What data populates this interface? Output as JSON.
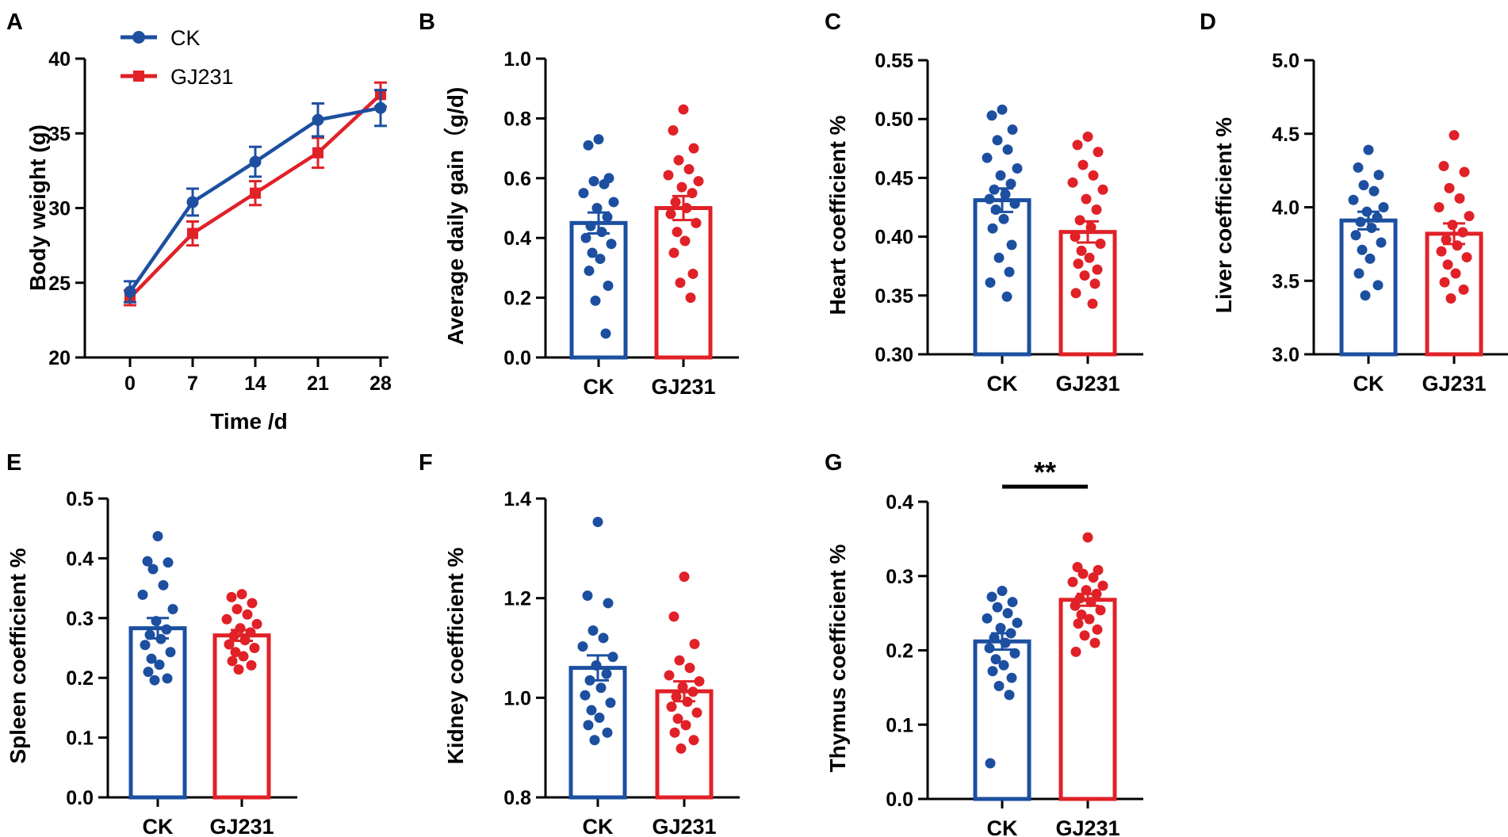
{
  "colors": {
    "ck": "#1c4fa0",
    "gj231": "#e02127",
    "axis": "#000000"
  },
  "chart_data": [
    {
      "id": "A",
      "type": "line",
      "letter": "A",
      "title": "",
      "xlabel": "Time /d",
      "ylabel": "Body weight (g)",
      "ylim": [
        20,
        40
      ],
      "yticks": [
        20,
        25,
        30,
        35,
        40
      ],
      "x": [
        0,
        7,
        14,
        21,
        28
      ],
      "xticklabels": [
        "0",
        "7",
        "14",
        "21",
        "28"
      ],
      "legend": {
        "position": "top-left",
        "entries": [
          "CK",
          "GJ231"
        ]
      },
      "series": [
        {
          "name": "CK",
          "marker": "circle",
          "values": [
            24.4,
            30.4,
            33.1,
            35.9,
            36.7
          ],
          "sem": [
            0.7,
            0.9,
            1.0,
            1.1,
            1.2
          ]
        },
        {
          "name": "GJ231",
          "marker": "square",
          "values": [
            24.0,
            28.3,
            31.0,
            33.7,
            37.6
          ],
          "sem": [
            0.5,
            0.8,
            0.8,
            1.0,
            0.8
          ]
        }
      ]
    },
    {
      "id": "B",
      "type": "bar",
      "letter": "B",
      "ylabel": "Average daily gain（g/d)",
      "ylim": [
        0,
        1.0
      ],
      "yticks": [
        "0.0",
        "0.2",
        "0.4",
        "0.6",
        "0.8",
        "1.0"
      ],
      "categories": [
        "CK",
        "GJ231"
      ],
      "values": [
        0.45,
        0.5
      ],
      "sem": [
        0.035,
        0.04
      ],
      "points": [
        [
          0.73,
          0.71,
          0.6,
          0.59,
          0.58,
          0.55,
          0.52,
          0.5,
          0.47,
          0.44,
          0.42,
          0.4,
          0.38,
          0.35,
          0.33,
          0.29,
          0.24,
          0.19,
          0.08
        ],
        [
          0.83,
          0.76,
          0.7,
          0.66,
          0.63,
          0.61,
          0.59,
          0.57,
          0.55,
          0.52,
          0.5,
          0.48,
          0.45,
          0.42,
          0.39,
          0.35,
          0.28,
          0.25,
          0.2
        ]
      ]
    },
    {
      "id": "C",
      "type": "bar",
      "letter": "C",
      "ylabel": "Heart coefficient  %",
      "ylim": [
        0.3,
        0.55
      ],
      "yticks": [
        "0.30",
        "0.35",
        "0.40",
        "0.45",
        "0.50",
        "0.55"
      ],
      "categories": [
        "CK",
        "GJ231"
      ],
      "values": [
        0.431,
        0.404
      ],
      "sem": [
        0.01,
        0.009
      ],
      "points": [
        [
          0.508,
          0.503,
          0.491,
          0.482,
          0.474,
          0.467,
          0.458,
          0.452,
          0.445,
          0.44,
          0.436,
          0.432,
          0.428,
          0.423,
          0.415,
          0.407,
          0.393,
          0.382,
          0.37,
          0.361,
          0.349
        ],
        [
          0.485,
          0.478,
          0.472,
          0.461,
          0.452,
          0.446,
          0.44,
          0.432,
          0.423,
          0.414,
          0.408,
          0.4,
          0.394,
          0.388,
          0.382,
          0.377,
          0.372,
          0.367,
          0.36,
          0.352,
          0.343
        ]
      ]
    },
    {
      "id": "D",
      "type": "bar",
      "letter": "D",
      "ylabel": "Liver coefficient  %",
      "ylim": [
        3.0,
        5.0
      ],
      "yticks": [
        "3.0",
        "3.5",
        "4.0",
        "4.5",
        "5.0"
      ],
      "categories": [
        "CK",
        "GJ231"
      ],
      "values": [
        3.91,
        3.82
      ],
      "sem": [
        0.06,
        0.07
      ],
      "points": [
        [
          4.39,
          4.27,
          4.22,
          4.15,
          4.11,
          4.05,
          4.0,
          3.97,
          3.93,
          3.9,
          3.86,
          3.81,
          3.76,
          3.71,
          3.65,
          3.55,
          3.47,
          3.4
        ],
        [
          4.49,
          4.28,
          4.24,
          4.13,
          4.06,
          4.0,
          3.94,
          3.88,
          3.83,
          3.78,
          3.74,
          3.7,
          3.66,
          3.61,
          3.55,
          3.49,
          3.44,
          3.38
        ]
      ]
    },
    {
      "id": "E",
      "type": "bar",
      "letter": "E",
      "ylabel": "Spleen coefficient  %",
      "ylim": [
        0.0,
        0.5
      ],
      "yticks": [
        "0.0",
        "0.1",
        "0.2",
        "0.3",
        "0.4",
        "0.5"
      ],
      "categories": [
        "CK",
        "GJ231"
      ],
      "values": [
        0.283,
        0.271
      ],
      "sem": [
        0.017,
        0.009
      ],
      "points": [
        [
          0.437,
          0.395,
          0.393,
          0.382,
          0.355,
          0.339,
          0.315,
          0.295,
          0.281,
          0.272,
          0.265,
          0.255,
          0.243,
          0.232,
          0.222,
          0.21,
          0.199,
          0.196
        ],
        [
          0.34,
          0.335,
          0.325,
          0.315,
          0.306,
          0.298,
          0.29,
          0.283,
          0.276,
          0.27,
          0.263,
          0.256,
          0.25,
          0.243,
          0.236,
          0.228,
          0.221,
          0.214
        ]
      ]
    },
    {
      "id": "F",
      "type": "bar",
      "letter": "F",
      "ylabel": "Kidney coefficient %",
      "ylim": [
        0.8,
        1.4
      ],
      "yticks": [
        "0.8",
        "1.0",
        "1.2",
        "1.4"
      ],
      "categories": [
        "CK",
        "GJ231"
      ],
      "values": [
        1.06,
        1.013
      ],
      "sem": [
        0.025,
        0.02
      ],
      "points": [
        [
          1.353,
          1.205,
          1.19,
          1.135,
          1.12,
          1.103,
          1.082,
          1.065,
          1.048,
          1.035,
          1.02,
          1.005,
          0.99,
          0.975,
          0.96,
          0.945,
          0.93,
          0.915
        ],
        [
          1.243,
          1.163,
          1.108,
          1.075,
          1.06,
          1.045,
          1.033,
          1.022,
          1.012,
          1.002,
          0.992,
          0.982,
          0.97,
          0.958,
          0.945,
          0.93,
          0.915,
          0.898
        ]
      ]
    },
    {
      "id": "G",
      "type": "bar",
      "letter": "G",
      "ylabel": "Thymus coefficient %",
      "ylim": [
        0.0,
        0.4
      ],
      "yticks": [
        "0.0",
        "0.1",
        "0.2",
        "0.3",
        "0.4"
      ],
      "categories": [
        "CK",
        "GJ231"
      ],
      "values": [
        0.212,
        0.268
      ],
      "sem": [
        0.011,
        0.008
      ],
      "significance": "**",
      "points": [
        [
          0.28,
          0.272,
          0.265,
          0.258,
          0.25,
          0.243,
          0.237,
          0.23,
          0.223,
          0.217,
          0.21,
          0.203,
          0.196,
          0.188,
          0.18,
          0.172,
          0.163,
          0.152,
          0.14,
          0.048
        ],
        [
          0.352,
          0.312,
          0.308,
          0.303,
          0.298,
          0.292,
          0.287,
          0.281,
          0.276,
          0.27,
          0.265,
          0.26,
          0.254,
          0.248,
          0.242,
          0.236,
          0.228,
          0.22,
          0.21,
          0.198
        ]
      ]
    }
  ]
}
